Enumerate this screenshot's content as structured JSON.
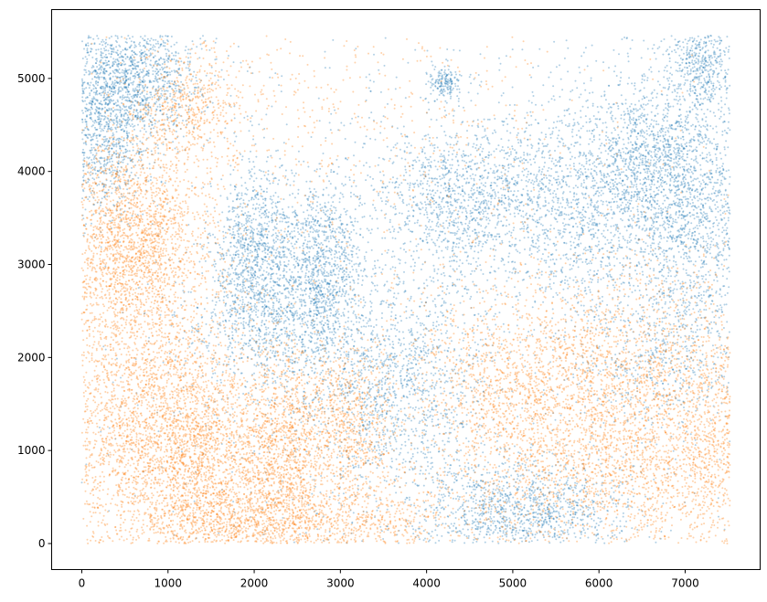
{
  "chart_data": {
    "type": "scatter",
    "title": "",
    "xlabel": "",
    "ylabel": "",
    "xlim": [
      -350,
      7870
    ],
    "ylim": [
      -280,
      5740
    ],
    "x_ticks": [
      0,
      1000,
      2000,
      3000,
      4000,
      5000,
      6000,
      7000
    ],
    "y_ticks": [
      0,
      1000,
      2000,
      3000,
      4000,
      5000
    ],
    "x_tick_labels": [
      "0",
      "1000",
      "2000",
      "3000",
      "4000",
      "5000",
      "6000",
      "7000"
    ],
    "y_tick_labels": [
      "0",
      "1000",
      "2000",
      "3000",
      "4000",
      "5000"
    ],
    "grid": false,
    "legend": "none",
    "data_extent": {
      "x": [
        0,
        7520
      ],
      "y": [
        0,
        5460
      ]
    },
    "series": [
      {
        "color": "#1f77b4",
        "clusters": [
          {
            "cx": 500,
            "cy": 5000,
            "sx": 420,
            "sy": 360,
            "weight": 9
          },
          {
            "cx": 200,
            "cy": 4300,
            "sx": 300,
            "sy": 400,
            "weight": 5
          },
          {
            "cx": 2050,
            "cy": 3050,
            "sx": 260,
            "sy": 480,
            "weight": 7
          },
          {
            "cx": 2800,
            "cy": 3000,
            "sx": 220,
            "sy": 420,
            "weight": 5
          },
          {
            "cx": 4400,
            "cy": 3700,
            "sx": 500,
            "sy": 400,
            "weight": 6
          },
          {
            "cx": 4200,
            "cy": 4950,
            "sx": 100,
            "sy": 100,
            "weight": 1
          },
          {
            "cx": 5900,
            "cy": 3700,
            "sx": 650,
            "sy": 600,
            "weight": 10
          },
          {
            "cx": 6650,
            "cy": 4200,
            "sx": 380,
            "sy": 420,
            "weight": 5
          },
          {
            "cx": 7150,
            "cy": 3400,
            "sx": 350,
            "sy": 600,
            "weight": 6
          },
          {
            "cx": 7200,
            "cy": 5150,
            "sx": 220,
            "sy": 250,
            "weight": 3
          },
          {
            "cx": 5150,
            "cy": 350,
            "sx": 600,
            "sy": 280,
            "weight": 7
          },
          {
            "cx": 3700,
            "cy": 1600,
            "sx": 500,
            "sy": 600,
            "weight": 6
          },
          {
            "cx": 2500,
            "cy": 2200,
            "sx": 700,
            "sy": 400,
            "weight": 5
          },
          {
            "cx": 6700,
            "cy": 2000,
            "sx": 500,
            "sy": 400,
            "weight": 3
          },
          {
            "cx": 4000,
            "cy": 2500,
            "sx": 1500,
            "sy": 1800,
            "weight": 6
          },
          {
            "cx": 3800,
            "cy": 2700,
            "sx": 2600,
            "sy": 2200,
            "weight": 4
          }
        ]
      },
      {
        "color": "#ff7f0e",
        "clusters": [
          {
            "cx": 600,
            "cy": 3300,
            "sx": 420,
            "sy": 550,
            "weight": 12
          },
          {
            "cx": 700,
            "cy": 1400,
            "sx": 600,
            "sy": 800,
            "weight": 16
          },
          {
            "cx": 1400,
            "cy": 800,
            "sx": 450,
            "sy": 600,
            "weight": 9
          },
          {
            "cx": 2350,
            "cy": 1000,
            "sx": 260,
            "sy": 600,
            "weight": 7
          },
          {
            "cx": 3050,
            "cy": 1200,
            "sx": 300,
            "sy": 500,
            "weight": 5
          },
          {
            "cx": 1200,
            "cy": 4700,
            "sx": 300,
            "sy": 300,
            "weight": 3
          },
          {
            "cx": 5000,
            "cy": 1700,
            "sx": 600,
            "sy": 500,
            "weight": 7
          },
          {
            "cx": 6300,
            "cy": 1600,
            "sx": 700,
            "sy": 700,
            "weight": 11
          },
          {
            "cx": 7300,
            "cy": 1000,
            "sx": 300,
            "sy": 700,
            "weight": 5
          },
          {
            "cx": 3000,
            "cy": 200,
            "sx": 900,
            "sy": 200,
            "weight": 4
          },
          {
            "cx": 6000,
            "cy": 700,
            "sx": 800,
            "sy": 400,
            "weight": 5
          },
          {
            "cx": 2000,
            "cy": 200,
            "sx": 800,
            "sy": 250,
            "weight": 4
          },
          {
            "cx": 3000,
            "cy": 4600,
            "sx": 1400,
            "sy": 700,
            "weight": 3
          },
          {
            "cx": 4200,
            "cy": 2000,
            "sx": 2500,
            "sy": 1900,
            "weight": 5
          }
        ]
      }
    ]
  }
}
